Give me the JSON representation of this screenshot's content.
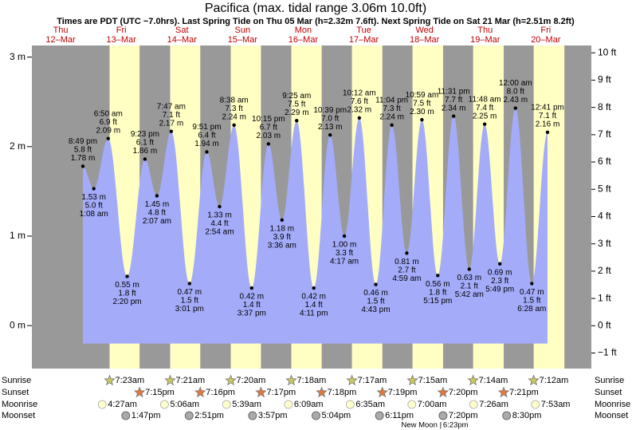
{
  "chart_data": {
    "type": "tide",
    "title": "Pacifica (max. tidal range 3.06m 10.0ft)",
    "subtitle": "Times are PDT (UTC −7.0hrs). Last Spring Tide on Thu 05 Mar (h=2.32m 7.6ft). Next Spring Tide on Sat 21 Mar (h=2.51m 8.2ft)",
    "ylim": [
      -0.48,
      3.13
    ],
    "yticks": [
      {
        "value": 0,
        "label": "0 m"
      },
      {
        "value": 1,
        "label": "1 m"
      },
      {
        "value": 2,
        "label": "2 m"
      },
      {
        "value": 3,
        "label": "3 m"
      }
    ],
    "y2lim": [
      -1.57,
      10.27
    ],
    "y2ticks": [
      {
        "value": -1,
        "label": "−1 ft"
      },
      {
        "value": 0,
        "label": "0 ft"
      },
      {
        "value": 1,
        "label": "1 ft"
      },
      {
        "value": 2,
        "label": "2 ft"
      },
      {
        "value": 3,
        "label": "3 ft"
      },
      {
        "value": 4,
        "label": "4 ft"
      },
      {
        "value": 5,
        "label": "5 ft"
      },
      {
        "value": 6,
        "label": "6 ft"
      },
      {
        "value": 7,
        "label": "7 ft"
      },
      {
        "value": 8,
        "label": "8 ft"
      },
      {
        "value": 9,
        "label": "9 ft"
      },
      {
        "value": 10,
        "label": "10 ft"
      }
    ],
    "row_labels": {
      "sunrise": "Sunrise",
      "sunset": "Sunset",
      "moonrise": "Moonrise",
      "moonset": "Moonset"
    },
    "colors": {
      "night": "#999999",
      "day": "#ffffc4",
      "water": "#a4acfa",
      "date": "#c00000"
    },
    "days": [
      {
        "weekday": "Thu",
        "date": "12–Mar",
        "sunrise": null,
        "sunset": null,
        "moonrise": null,
        "moonset": null,
        "tides": [
          {
            "time": "8:49 pm",
            "m": 1.78,
            "m_label": "1.78 m",
            "ft_label": "5.8 ft"
          }
        ]
      },
      {
        "weekday": "Fri",
        "date": "13–Mar",
        "sunrise": "7:23am",
        "sunset": "7:15pm",
        "moonrise": "4:27am",
        "moonset": "1:47pm",
        "tides": [
          {
            "time": "1:08 am",
            "m": 1.53,
            "m_label": "1.53 m",
            "ft_label": "5.0 ft"
          },
          {
            "time": "6:50 am",
            "m": 2.09,
            "m_label": "2.09 m",
            "ft_label": "6.9 ft"
          },
          {
            "time": "2:20 pm",
            "m": 0.55,
            "m_label": "0.55 m",
            "ft_label": "1.8 ft"
          },
          {
            "time": "9:23 pm",
            "m": 1.86,
            "m_label": "1.86 m",
            "ft_label": "6.1 ft"
          }
        ]
      },
      {
        "weekday": "Sat",
        "date": "14–Mar",
        "sunrise": "7:21am",
        "sunset": "7:16pm",
        "moonrise": "5:06am",
        "moonset": "2:51pm",
        "tides": [
          {
            "time": "2:07 am",
            "m": 1.45,
            "m_label": "1.45 m",
            "ft_label": "4.8 ft"
          },
          {
            "time": "7:47 am",
            "m": 2.17,
            "m_label": "2.17 m",
            "ft_label": "7.1 ft"
          },
          {
            "time": "3:01 pm",
            "m": 0.47,
            "m_label": "0.47 m",
            "ft_label": "1.5 ft"
          },
          {
            "time": "9:51 pm",
            "m": 1.94,
            "m_label": "1.94 m",
            "ft_label": "6.4 ft"
          }
        ]
      },
      {
        "weekday": "Sun",
        "date": "15–Mar",
        "sunrise": "7:20am",
        "sunset": "7:17pm",
        "moonrise": "5:39am",
        "moonset": "3:57pm",
        "tides": [
          {
            "time": "2:54 am",
            "m": 1.33,
            "m_label": "1.33 m",
            "ft_label": "4.4 ft"
          },
          {
            "time": "8:38 am",
            "m": 2.24,
            "m_label": "2.24 m",
            "ft_label": "7.3 ft"
          },
          {
            "time": "3:37 pm",
            "m": 0.42,
            "m_label": "0.42 m",
            "ft_label": "1.4 ft"
          },
          {
            "time": "10:15 pm",
            "m": 2.03,
            "m_label": "2.03 m",
            "ft_label": "6.7 ft"
          }
        ]
      },
      {
        "weekday": "Mon",
        "date": "16–Mar",
        "sunrise": "7:18am",
        "sunset": "7:18pm",
        "moonrise": "6:09am",
        "moonset": "5:04pm",
        "tides": [
          {
            "time": "3:36 am",
            "m": 1.18,
            "m_label": "1.18 m",
            "ft_label": "3.9 ft"
          },
          {
            "time": "9:25 am",
            "m": 2.29,
            "m_label": "2.29 m",
            "ft_label": "7.5 ft"
          },
          {
            "time": "4:11 pm",
            "m": 0.42,
            "m_label": "0.42 m",
            "ft_label": "1.4 ft"
          },
          {
            "time": "10:39 pm",
            "m": 2.13,
            "m_label": "2.13 m",
            "ft_label": "7.0 ft"
          }
        ]
      },
      {
        "weekday": "Tue",
        "date": "17–Mar",
        "sunrise": "7:17am",
        "sunset": "7:19pm",
        "moonrise": "6:35am",
        "moonset": "6:11pm",
        "tides": [
          {
            "time": "4:17 am",
            "m": 1.0,
            "m_label": "1.00 m",
            "ft_label": "3.3 ft"
          },
          {
            "time": "10:12 am",
            "m": 2.32,
            "m_label": "2.32 m",
            "ft_label": "7.6 ft"
          },
          {
            "time": "4:43 pm",
            "m": 0.46,
            "m_label": "0.46 m",
            "ft_label": "1.5 ft"
          },
          {
            "time": "11:04 pm",
            "m": 2.24,
            "m_label": "2.24 m",
            "ft_label": "7.3 ft"
          }
        ]
      },
      {
        "weekday": "Wed",
        "date": "18–Mar",
        "sunrise": "7:15am",
        "sunset": "7:20pm",
        "moonrise": "7:00am",
        "moonset": "7:20pm",
        "moon_phase": {
          "name": "New Moon",
          "time": "6:23pm"
        },
        "tides": [
          {
            "time": "4:59 am",
            "m": 0.81,
            "m_label": "0.81 m",
            "ft_label": "2.7 ft"
          },
          {
            "time": "10:59 am",
            "m": 2.3,
            "m_label": "2.30 m",
            "ft_label": "7.5 ft"
          },
          {
            "time": "5:15 pm",
            "m": 0.56,
            "m_label": "0.56 m",
            "ft_label": "1.8 ft"
          },
          {
            "time": "11:31 pm",
            "m": 2.34,
            "m_label": "2.34 m",
            "ft_label": "7.7 ft"
          }
        ]
      },
      {
        "weekday": "Thu",
        "date": "19–Mar",
        "sunrise": "7:14am",
        "sunset": "7:21pm",
        "moonrise": "7:26am",
        "moonset": "8:30pm",
        "tides": [
          {
            "time": "5:42 am",
            "m": 0.63,
            "m_label": "0.63 m",
            "ft_label": "2.1 ft"
          },
          {
            "time": "11:48 am",
            "m": 2.25,
            "m_label": "2.25 m",
            "ft_label": "7.4 ft"
          },
          {
            "time": "5:49 pm",
            "m": 0.69,
            "m_label": "0.69 m",
            "ft_label": "2.3 ft"
          }
        ]
      },
      {
        "weekday": "Fri",
        "date": "20–Mar",
        "sunrise": "7:12am",
        "sunset": null,
        "moonrise": "7:53am",
        "moonset": null,
        "tides": [
          {
            "time": "12:00 am",
            "m": 2.43,
            "m_label": "2.43 m",
            "ft_label": "8.0 ft"
          },
          {
            "time": "6:28 am",
            "m": 0.47,
            "m_label": "0.47 m",
            "ft_label": "1.5 ft"
          },
          {
            "time": "12:41 pm",
            "m": 2.16,
            "m_label": "2.16 m",
            "ft_label": "7.1 ft"
          }
        ]
      }
    ]
  }
}
